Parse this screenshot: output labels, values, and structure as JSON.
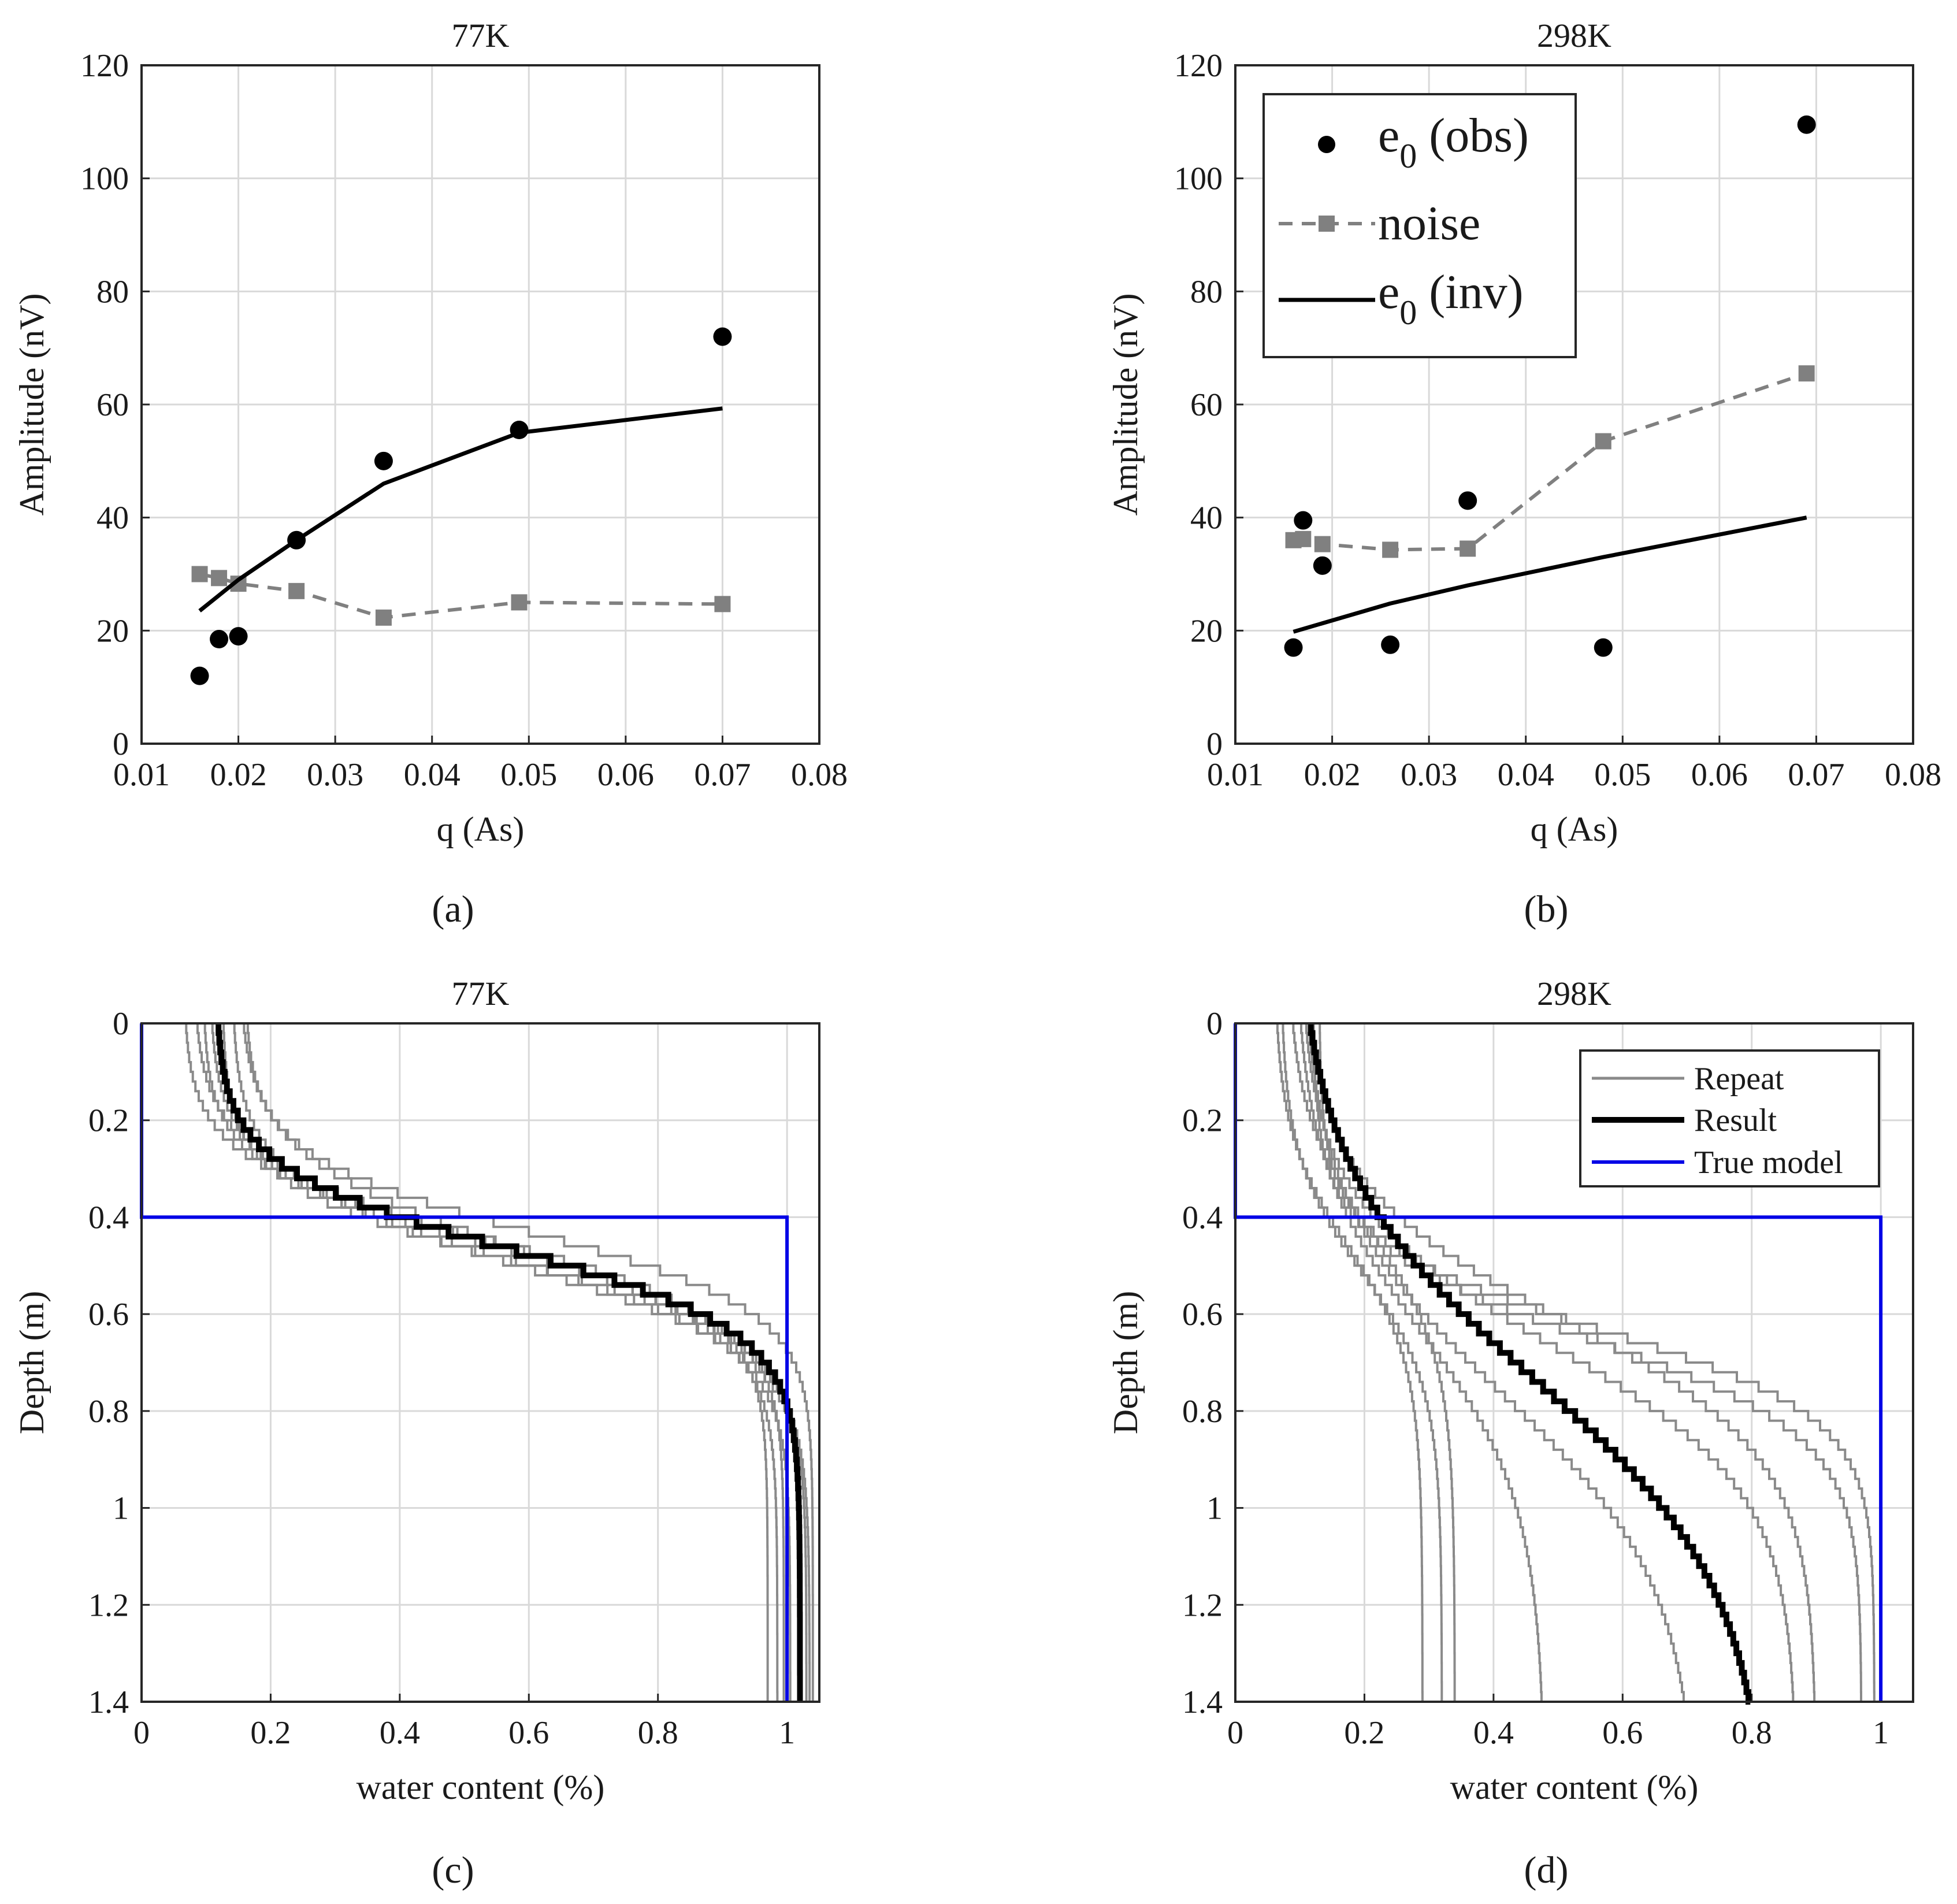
{
  "panel_labels": [
    "(a)",
    "(b)",
    "(c)",
    "(d)"
  ],
  "colors": {
    "obs": "#000000",
    "noise": "#808080",
    "inv": "#000000",
    "repeat": "#8a8a8a",
    "result": "#000000",
    "true_model": "#0000e6",
    "grid": "#d9d9d9",
    "axis": "#262626"
  },
  "legend_top": {
    "obs": "e0 (obs)",
    "noise": "noise",
    "inv": "e0 (inv)"
  },
  "legend_bottom": {
    "repeat": "Repeat",
    "result": "Result",
    "true_model": "True model"
  },
  "chart_data": [
    {
      "type": "scatter",
      "panel": "(a)",
      "title": "77K",
      "xlabel": "q (As)",
      "ylabel": "Amplitude (nV)",
      "xlim": [
        0.01,
        0.08
      ],
      "ylim": [
        0,
        120
      ],
      "xticks": [
        "0.01",
        "0.02",
        "0.03",
        "0.04",
        "0.05",
        "0.06",
        "0.07",
        "0.08"
      ],
      "yticks": [
        "0",
        "20",
        "40",
        "60",
        "80",
        "100",
        "120"
      ],
      "series": [
        {
          "name": "e0 (obs)",
          "style": "markers",
          "x": [
            0.016,
            0.018,
            0.02,
            0.026,
            0.035,
            0.049,
            0.07
          ],
          "y": [
            12,
            18.5,
            19,
            36,
            50,
            55.5,
            72
          ]
        },
        {
          "name": "noise",
          "style": "dashed-square",
          "x": [
            0.016,
            0.018,
            0.02,
            0.026,
            0.035,
            0.049,
            0.07
          ],
          "y": [
            30,
            29.3,
            28.3,
            27,
            22.3,
            25,
            24.7
          ]
        },
        {
          "name": "e0 (inv)",
          "style": "solid",
          "x": [
            0.016,
            0.02,
            0.026,
            0.035,
            0.049,
            0.07
          ],
          "y": [
            23.5,
            29,
            36,
            46,
            55,
            59.3
          ]
        }
      ]
    },
    {
      "type": "scatter",
      "panel": "(b)",
      "title": "298K",
      "xlabel": "q (As)",
      "ylabel": "Amplitude (nV)",
      "xlim": [
        0.01,
        0.08
      ],
      "ylim": [
        0,
        120
      ],
      "xticks": [
        "0.01",
        "0.02",
        "0.03",
        "0.04",
        "0.05",
        "0.06",
        "0.07",
        "0.08"
      ],
      "yticks": [
        "0",
        "20",
        "40",
        "60",
        "80",
        "100",
        "120"
      ],
      "legend": "top-left",
      "series": [
        {
          "name": "e0 (obs)",
          "style": "markers",
          "x": [
            0.016,
            0.017,
            0.019,
            0.026,
            0.034,
            0.048,
            0.069
          ],
          "y": [
            17,
            39.5,
            31.5,
            17.5,
            43,
            17,
            109.5
          ]
        },
        {
          "name": "noise",
          "style": "dashed-square",
          "x": [
            0.016,
            0.017,
            0.019,
            0.026,
            0.034,
            0.048,
            0.069
          ],
          "y": [
            36,
            36.2,
            35.3,
            34.3,
            34.5,
            53.5,
            65.5
          ]
        },
        {
          "name": "e0 (inv)",
          "style": "solid",
          "x": [
            0.016,
            0.026,
            0.034,
            0.048,
            0.069
          ],
          "y": [
            19.8,
            24.8,
            28,
            33,
            40
          ]
        }
      ]
    },
    {
      "type": "line",
      "panel": "(c)",
      "title": "77K",
      "xlabel": "water content (%)",
      "ylabel": "Depth (m)",
      "xlim": [
        0,
        1.05
      ],
      "ylim": [
        0,
        1.4
      ],
      "y_reversed": true,
      "xticks": [
        "0",
        "0.2",
        "0.4",
        "0.6",
        "0.8",
        "1"
      ],
      "yticks": [
        "0",
        "0.2",
        "0.4",
        "0.6",
        "0.8",
        "1",
        "1.2",
        "1.4"
      ],
      "true_model": {
        "depth": [
          0,
          0.4,
          0.4,
          1.4
        ],
        "value": [
          0,
          0,
          1,
          1
        ]
      },
      "result": {
        "top": 0.115,
        "bottom": 1.02,
        "center": 0.455,
        "width": 0.085
      },
      "repeats": [
        {
          "top": 0.065,
          "bottom": 0.97,
          "center": 0.43,
          "width": 0.08
        },
        {
          "top": 0.08,
          "bottom": 0.985,
          "center": 0.44,
          "width": 0.09
        },
        {
          "top": 0.095,
          "bottom": 0.995,
          "center": 0.45,
          "width": 0.08
        },
        {
          "top": 0.105,
          "bottom": 1.005,
          "center": 0.47,
          "width": 0.09
        },
        {
          "top": 0.125,
          "bottom": 1.02,
          "center": 0.48,
          "width": 0.08
        },
        {
          "top": 0.14,
          "bottom": 1.03,
          "center": 0.49,
          "width": 0.09
        },
        {
          "top": 0.15,
          "bottom": 1.035,
          "center": 0.46,
          "width": 0.1
        },
        {
          "top": 0.16,
          "bottom": 1.04,
          "center": 0.42,
          "width": 0.08
        }
      ]
    },
    {
      "type": "line",
      "panel": "(d)",
      "title": "298K",
      "xlabel": "water content (%)",
      "ylabel": "Depth (m)",
      "xlim": [
        0,
        1.05
      ],
      "ylim": [
        0,
        1.4
      ],
      "y_reversed": true,
      "xticks": [
        "0",
        "0.2",
        "0.4",
        "0.6",
        "0.8",
        "1"
      ],
      "yticks": [
        "0",
        "0.2",
        "0.4",
        "0.6",
        "0.8",
        "1",
        "1.2",
        "1.4"
      ],
      "legend": "top-right",
      "true_model": {
        "depth": [
          0,
          0.4,
          0.4,
          1.4
        ],
        "value": [
          0,
          0,
          1,
          1
        ]
      },
      "result": {
        "top": 0.09,
        "bottom": 0.83,
        "center": 0.72,
        "width": 0.22
      },
      "repeats": [
        {
          "top": 0.06,
          "bottom": 0.29,
          "center": 0.45,
          "width": 0.12
        },
        {
          "top": 0.07,
          "bottom": 0.32,
          "center": 0.5,
          "width": 0.12
        },
        {
          "top": 0.08,
          "bottom": 0.34,
          "center": 0.42,
          "width": 0.13
        },
        {
          "top": 0.09,
          "bottom": 0.48,
          "center": 0.62,
          "width": 0.18
        },
        {
          "top": 0.1,
          "bottom": 0.72,
          "center": 0.75,
          "width": 0.2
        },
        {
          "top": 0.1,
          "bottom": 0.87,
          "center": 0.65,
          "width": 0.15
        },
        {
          "top": 0.11,
          "bottom": 0.9,
          "center": 0.6,
          "width": 0.14
        },
        {
          "top": 0.12,
          "bottom": 0.97,
          "center": 0.64,
          "width": 0.1
        },
        {
          "top": 0.13,
          "bottom": 0.99,
          "center": 0.62,
          "width": 0.09
        }
      ]
    }
  ]
}
